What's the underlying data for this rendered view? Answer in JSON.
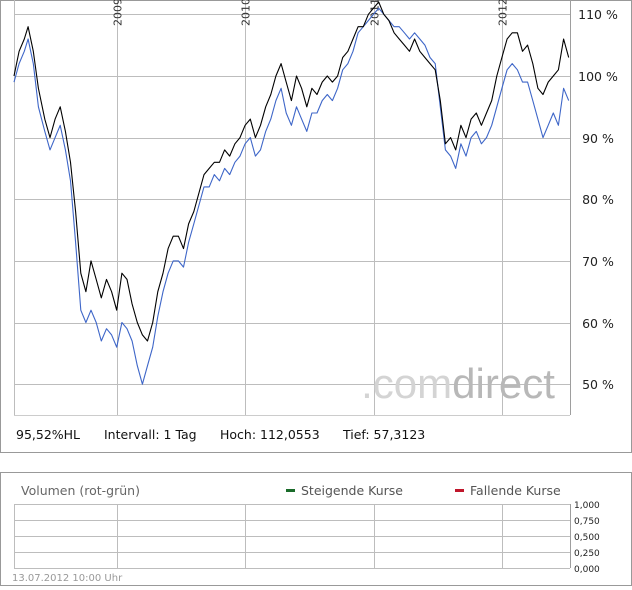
{
  "chart_data": [
    {
      "type": "line",
      "x_ticks": [
        "2009",
        "2010",
        "2011",
        "2012"
      ],
      "y_ticks": [
        "50 %",
        "60 %",
        "70 %",
        "80 %",
        "90 %",
        "100 %",
        "110 %"
      ],
      "y_tick_values": [
        50,
        60,
        70,
        80,
        90,
        100,
        110
      ],
      "ylim": [
        45,
        112
      ],
      "x_start": 2008.2,
      "x_end": 2012.53,
      "grid": true,
      "watermark": ".comdirect",
      "series": [
        {
          "color": "#000000",
          "points": [
            [
              2008.2,
              100
            ],
            [
              2008.24,
              104
            ],
            [
              2008.28,
              106
            ],
            [
              2008.31,
              108
            ],
            [
              2008.35,
              104
            ],
            [
              2008.39,
              98
            ],
            [
              2008.44,
              93
            ],
            [
              2008.48,
              90
            ],
            [
              2008.52,
              93
            ],
            [
              2008.56,
              95
            ],
            [
              2008.6,
              91
            ],
            [
              2008.64,
              86
            ],
            [
              2008.68,
              78
            ],
            [
              2008.72,
              68
            ],
            [
              2008.76,
              65
            ],
            [
              2008.8,
              70
            ],
            [
              2008.84,
              67
            ],
            [
              2008.88,
              64
            ],
            [
              2008.92,
              67
            ],
            [
              2008.96,
              65
            ],
            [
              2009.0,
              62
            ],
            [
              2009.04,
              68
            ],
            [
              2009.08,
              67
            ],
            [
              2009.12,
              63
            ],
            [
              2009.16,
              60
            ],
            [
              2009.2,
              58
            ],
            [
              2009.24,
              57
            ],
            [
              2009.28,
              60
            ],
            [
              2009.32,
              65
            ],
            [
              2009.36,
              68
            ],
            [
              2009.4,
              72
            ],
            [
              2009.44,
              74
            ],
            [
              2009.48,
              74
            ],
            [
              2009.52,
              72
            ],
            [
              2009.56,
              76
            ],
            [
              2009.6,
              78
            ],
            [
              2009.64,
              81
            ],
            [
              2009.68,
              84
            ],
            [
              2009.72,
              85
            ],
            [
              2009.76,
              86
            ],
            [
              2009.8,
              86
            ],
            [
              2009.84,
              88
            ],
            [
              2009.88,
              87
            ],
            [
              2009.92,
              89
            ],
            [
              2009.96,
              90
            ],
            [
              2010.0,
              92
            ],
            [
              2010.04,
              93
            ],
            [
              2010.08,
              90
            ],
            [
              2010.12,
              92
            ],
            [
              2010.16,
              95
            ],
            [
              2010.2,
              97
            ],
            [
              2010.24,
              100
            ],
            [
              2010.28,
              102
            ],
            [
              2010.32,
              99
            ],
            [
              2010.36,
              96
            ],
            [
              2010.4,
              100
            ],
            [
              2010.44,
              98
            ],
            [
              2010.48,
              95
            ],
            [
              2010.52,
              98
            ],
            [
              2010.56,
              97
            ],
            [
              2010.6,
              99
            ],
            [
              2010.64,
              100
            ],
            [
              2010.68,
              99
            ],
            [
              2010.72,
              100
            ],
            [
              2010.76,
              103
            ],
            [
              2010.8,
              104
            ],
            [
              2010.84,
              106
            ],
            [
              2010.88,
              108
            ],
            [
              2010.92,
              108
            ],
            [
              2010.96,
              110
            ],
            [
              2011.0,
              111
            ],
            [
              2011.04,
              112
            ],
            [
              2011.08,
              110
            ],
            [
              2011.12,
              109
            ],
            [
              2011.16,
              107
            ],
            [
              2011.2,
              106
            ],
            [
              2011.24,
              105
            ],
            [
              2011.28,
              104
            ],
            [
              2011.32,
              106
            ],
            [
              2011.36,
              104
            ],
            [
              2011.4,
              103
            ],
            [
              2011.44,
              102
            ],
            [
              2011.48,
              101
            ],
            [
              2011.52,
              96
            ],
            [
              2011.56,
              89
            ],
            [
              2011.6,
              90
            ],
            [
              2011.64,
              88
            ],
            [
              2011.68,
              92
            ],
            [
              2011.72,
              90
            ],
            [
              2011.76,
              93
            ],
            [
              2011.8,
              94
            ],
            [
              2011.84,
              92
            ],
            [
              2011.88,
              94
            ],
            [
              2011.92,
              96
            ],
            [
              2011.96,
              100
            ],
            [
              2012.0,
              103
            ],
            [
              2012.04,
              106
            ],
            [
              2012.08,
              107
            ],
            [
              2012.12,
              107
            ],
            [
              2012.16,
              104
            ],
            [
              2012.2,
              105
            ],
            [
              2012.24,
              102
            ],
            [
              2012.28,
              98
            ],
            [
              2012.32,
              97
            ],
            [
              2012.36,
              99
            ],
            [
              2012.4,
              100
            ],
            [
              2012.44,
              101
            ],
            [
              2012.48,
              106
            ],
            [
              2012.52,
              103
            ]
          ]
        },
        {
          "color": "#3e66c8",
          "points": [
            [
              2008.2,
              99
            ],
            [
              2008.24,
              102
            ],
            [
              2008.28,
              104
            ],
            [
              2008.31,
              106
            ],
            [
              2008.35,
              102
            ],
            [
              2008.39,
              95
            ],
            [
              2008.44,
              91
            ],
            [
              2008.48,
              88
            ],
            [
              2008.52,
              90
            ],
            [
              2008.56,
              92
            ],
            [
              2008.6,
              88
            ],
            [
              2008.64,
              83
            ],
            [
              2008.68,
              73
            ],
            [
              2008.72,
              62
            ],
            [
              2008.76,
              60
            ],
            [
              2008.8,
              62
            ],
            [
              2008.84,
              60
            ],
            [
              2008.88,
              57
            ],
            [
              2008.92,
              59
            ],
            [
              2008.96,
              58
            ],
            [
              2009.0,
              56
            ],
            [
              2009.04,
              60
            ],
            [
              2009.08,
              59
            ],
            [
              2009.12,
              57
            ],
            [
              2009.16,
              53
            ],
            [
              2009.2,
              50
            ],
            [
              2009.24,
              53
            ],
            [
              2009.28,
              56
            ],
            [
              2009.32,
              61
            ],
            [
              2009.36,
              65
            ],
            [
              2009.4,
              68
            ],
            [
              2009.44,
              70
            ],
            [
              2009.48,
              70
            ],
            [
              2009.52,
              69
            ],
            [
              2009.56,
              73
            ],
            [
              2009.6,
              76
            ],
            [
              2009.64,
              79
            ],
            [
              2009.68,
              82
            ],
            [
              2009.72,
              82
            ],
            [
              2009.76,
              84
            ],
            [
              2009.8,
              83
            ],
            [
              2009.84,
              85
            ],
            [
              2009.88,
              84
            ],
            [
              2009.92,
              86
            ],
            [
              2009.96,
              87
            ],
            [
              2010.0,
              89
            ],
            [
              2010.04,
              90
            ],
            [
              2010.08,
              87
            ],
            [
              2010.12,
              88
            ],
            [
              2010.16,
              91
            ],
            [
              2010.2,
              93
            ],
            [
              2010.24,
              96
            ],
            [
              2010.28,
              98
            ],
            [
              2010.32,
              94
            ],
            [
              2010.36,
              92
            ],
            [
              2010.4,
              95
            ],
            [
              2010.44,
              93
            ],
            [
              2010.48,
              91
            ],
            [
              2010.52,
              94
            ],
            [
              2010.56,
              94
            ],
            [
              2010.6,
              96
            ],
            [
              2010.64,
              97
            ],
            [
              2010.68,
              96
            ],
            [
              2010.72,
              98
            ],
            [
              2010.76,
              101
            ],
            [
              2010.8,
              102
            ],
            [
              2010.84,
              104
            ],
            [
              2010.88,
              107
            ],
            [
              2010.92,
              108
            ],
            [
              2010.96,
              109
            ],
            [
              2011.0,
              110
            ],
            [
              2011.04,
              111
            ],
            [
              2011.08,
              110
            ],
            [
              2011.12,
              109
            ],
            [
              2011.16,
              108
            ],
            [
              2011.2,
              108
            ],
            [
              2011.24,
              107
            ],
            [
              2011.28,
              106
            ],
            [
              2011.32,
              107
            ],
            [
              2011.36,
              106
            ],
            [
              2011.4,
              105
            ],
            [
              2011.44,
              103
            ],
            [
              2011.48,
              102
            ],
            [
              2011.52,
              95
            ],
            [
              2011.56,
              88
            ],
            [
              2011.6,
              87
            ],
            [
              2011.64,
              85
            ],
            [
              2011.68,
              89
            ],
            [
              2011.72,
              87
            ],
            [
              2011.76,
              90
            ],
            [
              2011.8,
              91
            ],
            [
              2011.84,
              89
            ],
            [
              2011.88,
              90
            ],
            [
              2011.92,
              92
            ],
            [
              2011.96,
              95
            ],
            [
              2012.0,
              98
            ],
            [
              2012.04,
              101
            ],
            [
              2012.08,
              102
            ],
            [
              2012.12,
              101
            ],
            [
              2012.16,
              99
            ],
            [
              2012.2,
              99
            ],
            [
              2012.24,
              96
            ],
            [
              2012.28,
              93
            ],
            [
              2012.32,
              90
            ],
            [
              2012.36,
              92
            ],
            [
              2012.4,
              94
            ],
            [
              2012.44,
              92
            ],
            [
              2012.48,
              98
            ],
            [
              2012.52,
              96
            ]
          ]
        }
      ]
    },
    {
      "type": "bar",
      "y_ticks": [
        "1,000",
        "0,750",
        "0,500",
        "0,250",
        "0,000"
      ],
      "y_tick_values": [
        1.0,
        0.75,
        0.5,
        0.25,
        0.0
      ],
      "ylim": [
        0,
        1
      ],
      "values": [],
      "grid": true
    }
  ],
  "info": {
    "label": "95,52%HL",
    "interval": "Intervall: 1 Tag",
    "high": "Hoch: 112,0553",
    "low": "Tief: 57,3123"
  },
  "volume": {
    "title": "Volumen (rot-grün)",
    "legend": [
      {
        "label": "Steigende Kurse",
        "color": "#1a6b2a"
      },
      {
        "label": "Fallende Kurse",
        "color": "#c0162b"
      }
    ]
  },
  "timestamp": "13.07.2012 10:00 Uhr"
}
